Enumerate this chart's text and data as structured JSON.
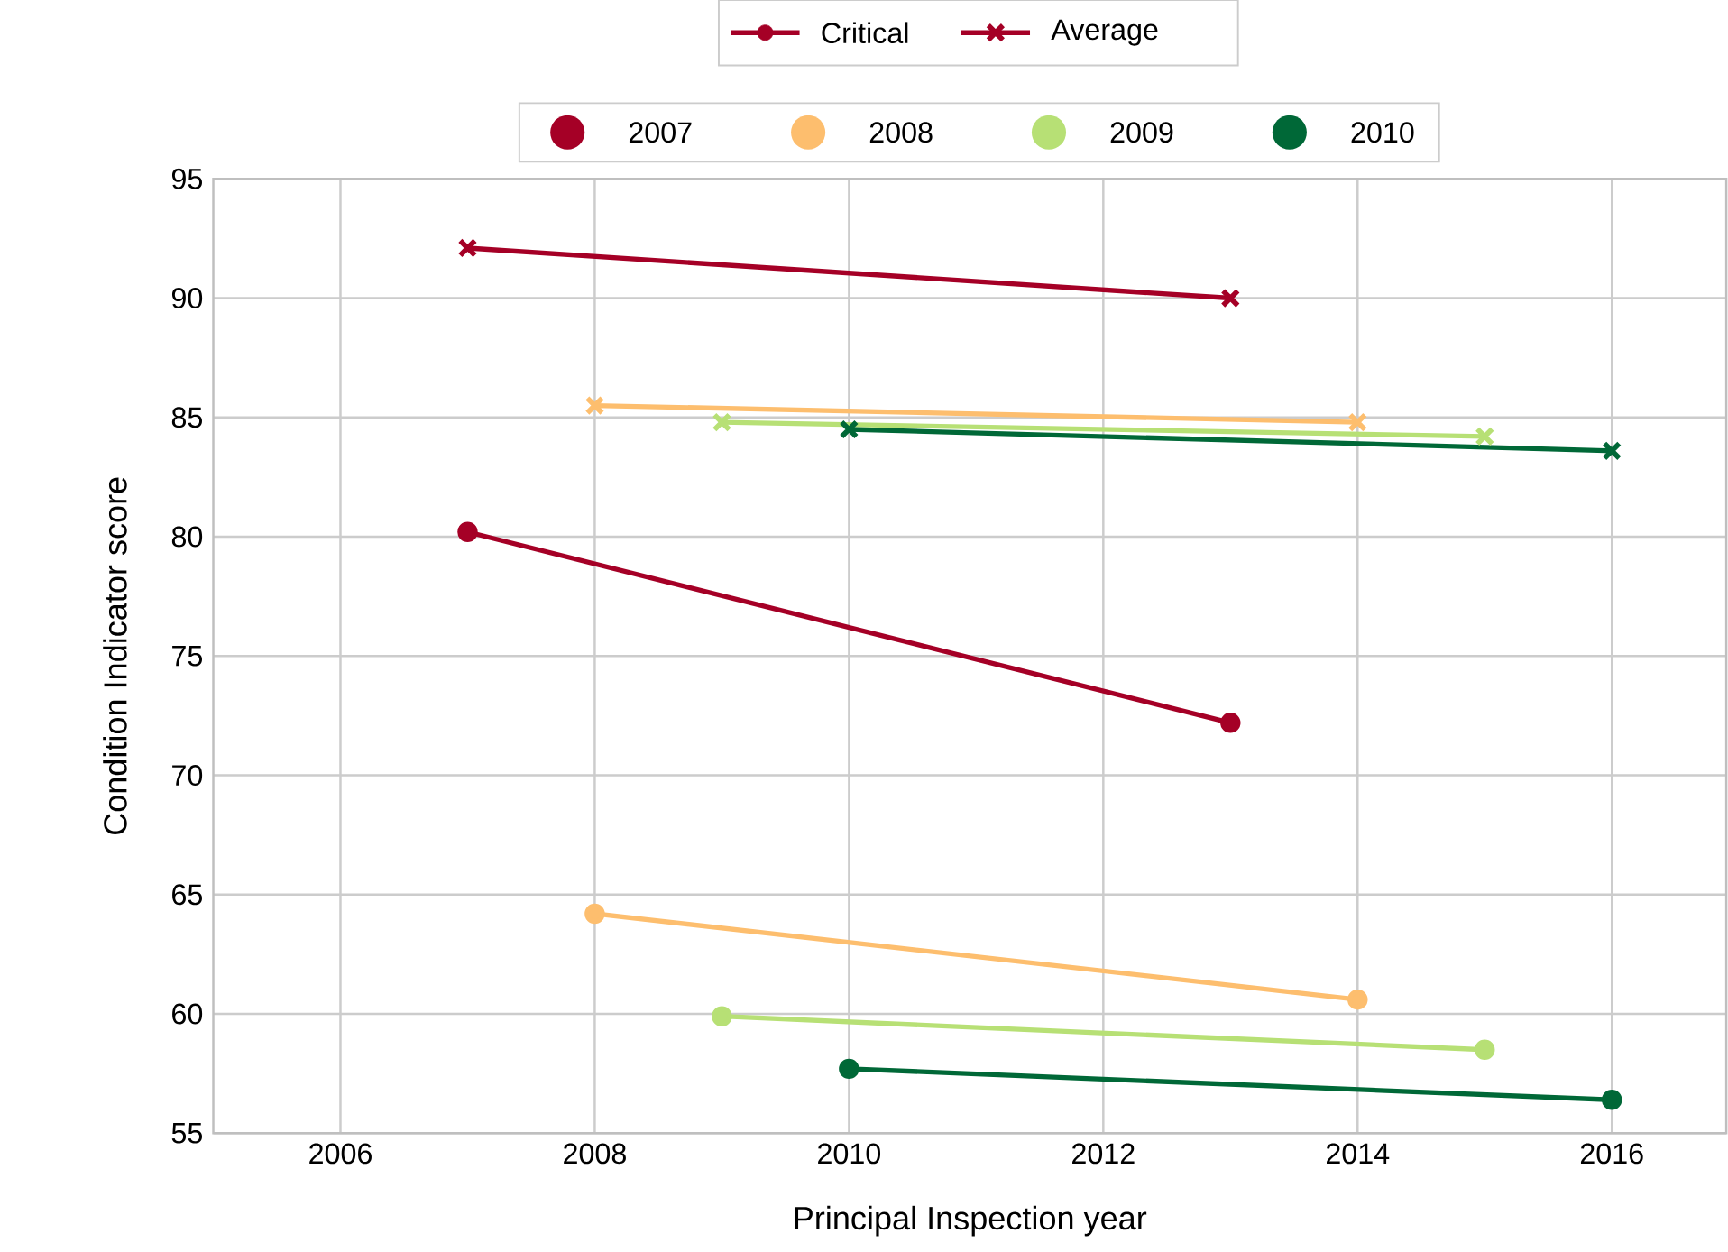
{
  "chart_data": {
    "type": "line",
    "xlabel": "Principal Inspection year",
    "ylabel": "Condition Indicator score",
    "xlim": [
      2005,
      2016.9
    ],
    "ylim": [
      55,
      95
    ],
    "xticks": [
      2006,
      2008,
      2010,
      2012,
      2014,
      2016
    ],
    "yticks": [
      55,
      60,
      65,
      70,
      75,
      80,
      85,
      90,
      95
    ],
    "grid": true,
    "legend": "top",
    "line_style": "solid",
    "series": [
      {
        "name": "Critical",
        "color": "#a50026",
        "marker": "circle"
      },
      {
        "name": "Average",
        "color": "#a50026",
        "marker": "cross"
      },
      {
        "name": "2007",
        "color": "#a50026",
        "marker": "circle",
        "x": [
          2007,
          2013
        ],
        "values": [
          80.2,
          72.2
        ]
      },
      {
        "color": "#a50026",
        "marker": "cross",
        "x": [
          2007,
          2013
        ],
        "values": [
          92.1,
          90.0
        ]
      },
      {
        "name": "2008",
        "color": "#fdbe6e",
        "marker": "circle",
        "x": [
          2008,
          2014
        ],
        "values": [
          64.2,
          60.6
        ]
      },
      {
        "color": "#fdbe6e",
        "marker": "cross",
        "x": [
          2008,
          2014
        ],
        "values": [
          85.5,
          84.8
        ]
      },
      {
        "name": "2009",
        "color": "#b7e075",
        "marker": "circle",
        "x": [
          2009,
          2015
        ],
        "values": [
          59.9,
          58.5
        ]
      },
      {
        "color": "#b7e075",
        "marker": "cross",
        "x": [
          2009,
          2015
        ],
        "values": [
          84.8,
          84.2
        ]
      },
      {
        "name": "2010",
        "color": "#006837",
        "marker": "circle",
        "x": [
          2010,
          2016
        ],
        "values": [
          57.7,
          56.4
        ]
      },
      {
        "color": "#006837",
        "marker": "cross",
        "x": [
          2010,
          2016
        ],
        "values": [
          84.5,
          83.6
        ]
      }
    ]
  }
}
